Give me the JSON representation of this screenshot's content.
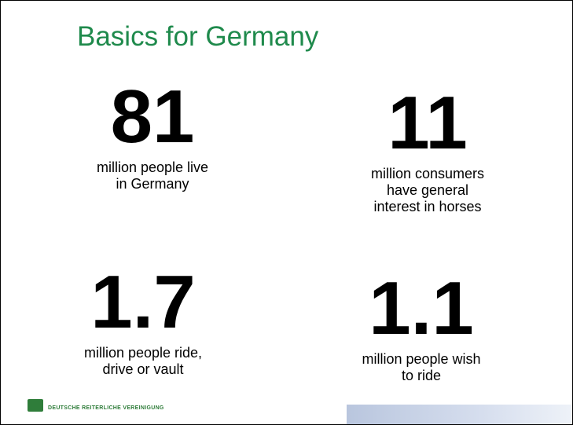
{
  "title": "Basics for Germany",
  "stats": [
    {
      "number": 81,
      "lines": [
        "million people live",
        "in Germany"
      ]
    },
    {
      "number": 11,
      "lines": [
        "million consumers",
        "have general",
        "interest in horses"
      ]
    },
    {
      "number": 1.7,
      "lines": [
        "million people ride,",
        "drive or vault"
      ]
    },
    {
      "number": 1.1,
      "lines": [
        "million people wish",
        "to ride"
      ]
    }
  ],
  "footer": "DEUTSCHE REITERLICHE VEREINIGUNG"
}
